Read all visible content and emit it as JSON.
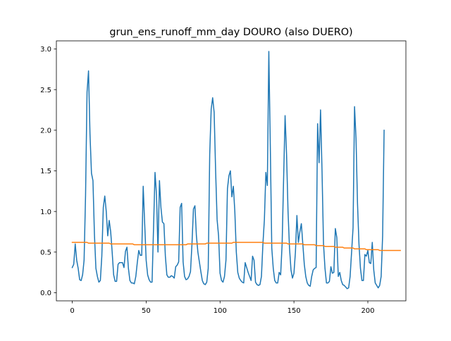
{
  "chart_data": {
    "type": "line",
    "title": "grun_ens_runoff_mm_day DOURO (also DUERO)",
    "xlabel": "",
    "ylabel": "",
    "xlim": [
      -10.75,
      225.75
    ],
    "ylim": [
      -0.1,
      3.1
    ],
    "xticks": [
      0,
      50,
      100,
      150,
      200
    ],
    "xtick_labels": [
      "0",
      "50",
      "100",
      "150",
      "200"
    ],
    "yticks": [
      0.0,
      0.5,
      1.0,
      1.5,
      2.0,
      2.5,
      3.0
    ],
    "ytick_labels": [
      "0.0",
      "0.5",
      "1.0",
      "1.5",
      "2.0",
      "2.5",
      "3.0"
    ],
    "grid": false,
    "legend": false,
    "series": [
      {
        "color": "#1f77b4",
        "values": [
          0.31,
          0.35,
          0.6,
          0.4,
          0.3,
          0.16,
          0.15,
          0.22,
          0.4,
          1.2,
          2.47,
          2.73,
          1.95,
          1.47,
          1.38,
          0.72,
          0.3,
          0.2,
          0.13,
          0.15,
          0.45,
          1.05,
          1.19,
          1.0,
          0.7,
          0.89,
          0.75,
          0.5,
          0.22,
          0.14,
          0.14,
          0.35,
          0.37,
          0.37,
          0.37,
          0.31,
          0.51,
          0.56,
          0.3,
          0.15,
          0.12,
          0.12,
          0.11,
          0.2,
          0.37,
          0.52,
          0.46,
          0.46,
          1.31,
          0.85,
          0.4,
          0.22,
          0.16,
          0.13,
          0.13,
          0.8,
          1.48,
          1.2,
          0.5,
          1.38,
          1.05,
          0.87,
          0.85,
          0.45,
          0.22,
          0.19,
          0.19,
          0.21,
          0.2,
          0.18,
          0.32,
          0.34,
          0.38,
          1.05,
          1.1,
          0.38,
          0.2,
          0.16,
          0.17,
          0.2,
          0.26,
          0.6,
          1.03,
          1.07,
          0.7,
          0.5,
          0.38,
          0.26,
          0.15,
          0.11,
          0.1,
          0.13,
          0.3,
          1.7,
          2.26,
          2.4,
          2.22,
          1.5,
          0.9,
          0.7,
          0.24,
          0.15,
          0.13,
          0.2,
          0.4,
          1.28,
          1.44,
          1.5,
          1.18,
          1.31,
          1.0,
          0.5,
          0.25,
          0.18,
          0.15,
          0.13,
          0.12,
          0.37,
          0.31,
          0.25,
          0.2,
          0.15,
          0.45,
          0.4,
          0.13,
          0.1,
          0.09,
          0.1,
          0.2,
          0.6,
          0.9,
          1.48,
          1.32,
          2.97,
          1.8,
          0.55,
          0.3,
          0.15,
          0.12,
          0.12,
          0.25,
          0.22,
          0.6,
          1.4,
          2.18,
          1.7,
          1.0,
          0.55,
          0.28,
          0.18,
          0.24,
          0.5,
          0.95,
          0.62,
          0.75,
          0.85,
          0.6,
          0.35,
          0.2,
          0.12,
          0.09,
          0.08,
          0.2,
          0.28,
          0.3,
          0.31,
          2.08,
          1.6,
          2.25,
          1.5,
          0.6,
          0.3,
          0.12,
          0.12,
          0.14,
          0.32,
          0.24,
          0.25,
          0.79,
          0.68,
          0.2,
          0.25,
          0.15,
          0.1,
          0.09,
          0.07,
          0.05,
          0.06,
          0.2,
          0.5,
          0.8,
          2.29,
          1.9,
          1.1,
          0.6,
          0.3,
          0.15,
          0.15,
          0.47,
          0.45,
          0.52,
          0.37,
          0.36,
          0.62,
          0.28,
          0.12,
          0.09,
          0.06,
          0.09,
          0.2,
          0.7,
          2.0
        ]
      },
      {
        "color": "#ff7f0e",
        "values": [
          0.62,
          0.62,
          0.62,
          0.62,
          0.62,
          0.62,
          0.62,
          0.62,
          0.62,
          0.62,
          0.62,
          0.61,
          0.61,
          0.61,
          0.61,
          0.61,
          0.61,
          0.61,
          0.61,
          0.61,
          0.61,
          0.61,
          0.61,
          0.61,
          0.61,
          0.61,
          0.6,
          0.6,
          0.6,
          0.6,
          0.6,
          0.6,
          0.6,
          0.6,
          0.6,
          0.6,
          0.6,
          0.6,
          0.6,
          0.6,
          0.6,
          0.6,
          0.59,
          0.59,
          0.59,
          0.59,
          0.59,
          0.59,
          0.59,
          0.59,
          0.59,
          0.59,
          0.59,
          0.59,
          0.59,
          0.59,
          0.59,
          0.59,
          0.59,
          0.59,
          0.59,
          0.59,
          0.59,
          0.59,
          0.59,
          0.59,
          0.59,
          0.59,
          0.59,
          0.59,
          0.59,
          0.59,
          0.59,
          0.59,
          0.59,
          0.59,
          0.59,
          0.59,
          0.6,
          0.6,
          0.6,
          0.6,
          0.6,
          0.6,
          0.6,
          0.6,
          0.6,
          0.6,
          0.6,
          0.6,
          0.6,
          0.61,
          0.61,
          0.61,
          0.61,
          0.61,
          0.61,
          0.61,
          0.61,
          0.61,
          0.61,
          0.61,
          0.61,
          0.61,
          0.61,
          0.61,
          0.61,
          0.61,
          0.61,
          0.62,
          0.62,
          0.62,
          0.62,
          0.62,
          0.62,
          0.62,
          0.62,
          0.62,
          0.62,
          0.62,
          0.62,
          0.62,
          0.62,
          0.62,
          0.62,
          0.62,
          0.62,
          0.62,
          0.62,
          0.62,
          0.61,
          0.61,
          0.61,
          0.61,
          0.61,
          0.61,
          0.61,
          0.61,
          0.61,
          0.61,
          0.61,
          0.61,
          0.61,
          0.61,
          0.61,
          0.61,
          0.6,
          0.6,
          0.6,
          0.6,
          0.6,
          0.6,
          0.6,
          0.6,
          0.6,
          0.6,
          0.6,
          0.59,
          0.59,
          0.59,
          0.59,
          0.59,
          0.59,
          0.59,
          0.59,
          0.58,
          0.58,
          0.58,
          0.58,
          0.58,
          0.58,
          0.57,
          0.57,
          0.57,
          0.57,
          0.57,
          0.57,
          0.57,
          0.56,
          0.56,
          0.56,
          0.56,
          0.56,
          0.56,
          0.55,
          0.55,
          0.55,
          0.55,
          0.55,
          0.55,
          0.55,
          0.54,
          0.54,
          0.54,
          0.54,
          0.54,
          0.54,
          0.54,
          0.54,
          0.53,
          0.53,
          0.53,
          0.53,
          0.53,
          0.53,
          0.53,
          0.53,
          0.53,
          0.52,
          0.52,
          0.52,
          0.52,
          0.52,
          0.52,
          0.52,
          0.52,
          0.52,
          0.52,
          0.52,
          0.52,
          0.52,
          0.52,
          0.52
        ]
      }
    ]
  }
}
